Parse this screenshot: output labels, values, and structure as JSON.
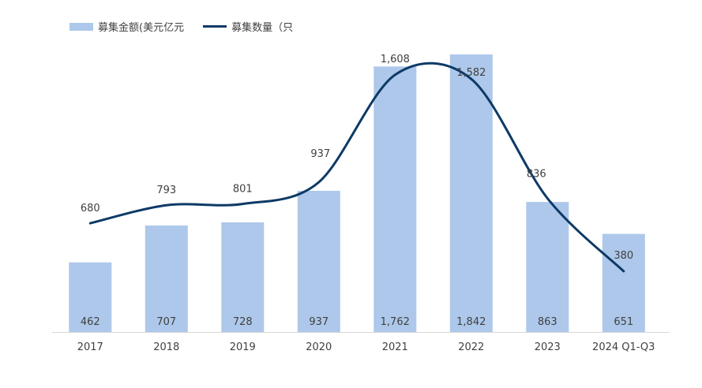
{
  "chart_data": {
    "type": "bar",
    "categories": [
      "2017",
      "2018",
      "2019",
      "2020",
      "2021",
      "2022",
      "2023",
      "2024 Q1-Q3"
    ],
    "series": [
      {
        "name": "募集金额(美元亿元",
        "kind": "bar",
        "values": [
          462,
          707,
          728,
          937,
          1762,
          1842,
          863,
          651
        ]
      },
      {
        "name": "募集数量（只",
        "kind": "line",
        "values": [
          680,
          793,
          801,
          937,
          1608,
          1582,
          836,
          380
        ]
      }
    ],
    "bar_ylim": [
      0,
      1842
    ],
    "line_ylim": [
      0,
      1780
    ],
    "grid": false,
    "legend_position": "top-left",
    "colors": {
      "bar": "#adc8ea",
      "line": "#0d3a66",
      "text": "#404040",
      "axis": "#d9d9d9"
    }
  }
}
